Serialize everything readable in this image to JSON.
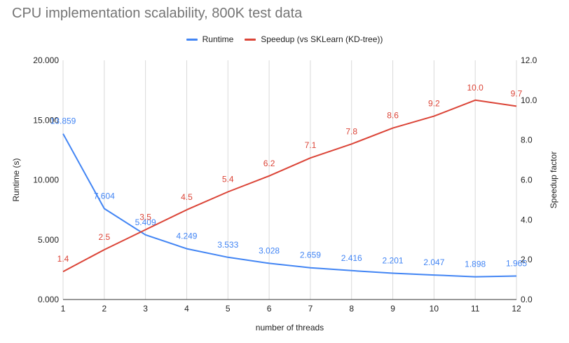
{
  "chart_data": {
    "type": "line",
    "title": "CPU implementation scalability, 800K test data",
    "xlabel": "number of threads",
    "ylabel_left": "Runtime (s)",
    "ylabel_right": "Speedup factor",
    "x": [
      1,
      2,
      3,
      4,
      5,
      6,
      7,
      8,
      9,
      10,
      11,
      12
    ],
    "x_tick_labels": [
      "1",
      "2",
      "3",
      "4",
      "5",
      "6",
      "7",
      "8",
      "9",
      "10",
      "11",
      "12"
    ],
    "ylim_left": [
      0,
      20
    ],
    "ylim_right": [
      0,
      12
    ],
    "y_left_tick_labels": [
      "0.000",
      "5.000",
      "10.000",
      "15.000",
      "20.000"
    ],
    "y_right_tick_labels": [
      "0.0",
      "2.0",
      "4.0",
      "6.0",
      "8.0",
      "10.0",
      "12.0"
    ],
    "grid": "vertical",
    "legend_position": "top",
    "series": [
      {
        "name": "Runtime",
        "axis": "left",
        "color": "#4285f4",
        "values": [
          13.859,
          7.604,
          5.409,
          4.249,
          3.533,
          3.028,
          2.659,
          2.416,
          2.201,
          2.047,
          1.898,
          1.965
        ],
        "data_labels": [
          "13.859",
          "7.604",
          "5.409",
          "4.249",
          "3.533",
          "3.028",
          "2.659",
          "2.416",
          "2.201",
          "2.047",
          "1.898",
          "1.965"
        ]
      },
      {
        "name": "Speedup (vs SKLearn (KD-tree))",
        "axis": "right",
        "color": "#db4437",
        "values": [
          1.4,
          2.5,
          3.5,
          4.5,
          5.4,
          6.2,
          7.1,
          7.8,
          8.6,
          9.2,
          10.0,
          9.7
        ],
        "data_labels": [
          "1.4",
          "2.5",
          "3.5",
          "4.5",
          "5.4",
          "6.2",
          "7.1",
          "7.8",
          "8.6",
          "9.2",
          "10.0",
          "9.7"
        ]
      }
    ]
  }
}
